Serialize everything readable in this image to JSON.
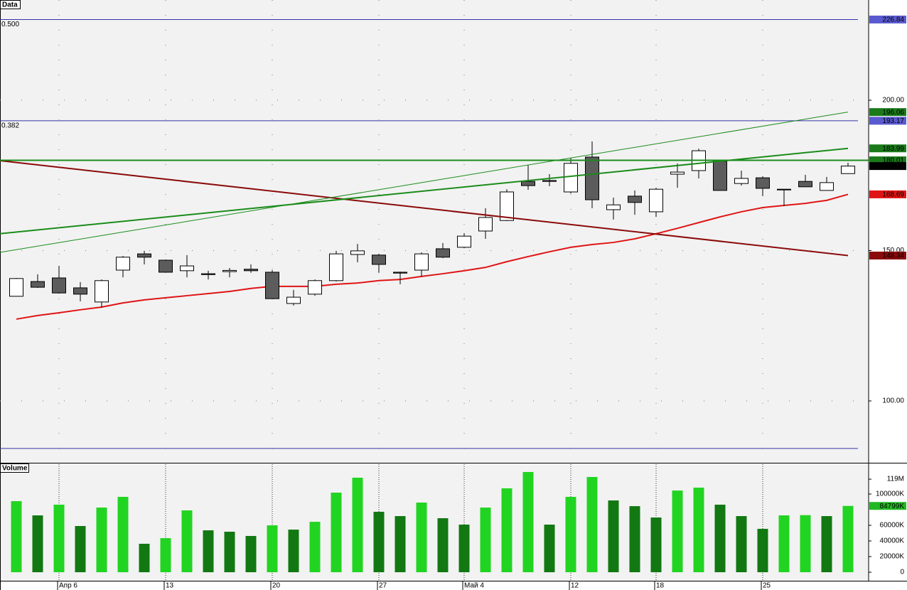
{
  "chart_data": [
    {
      "type": "candlestick",
      "title": "Data",
      "open": [
        134.8,
        139.7,
        140.9,
        137.6,
        132.9,
        143.5,
        148.9,
        146.8,
        143.3,
        142.3,
        143.0,
        143.8,
        142.8,
        132.4,
        135.5,
        140.0,
        148.7,
        148.5,
        142.8,
        143.5,
        150.6,
        151.1,
        156.5,
        160.0,
        173.0,
        173.3,
        169.5,
        181.1,
        163.6,
        168.1,
        162.9,
        175.4,
        176.6,
        179.7,
        172.3,
        174.2,
        170.4,
        173.0,
        170.0,
        175.6
      ],
      "high": [
        140.9,
        142.1,
        144.9,
        139.5,
        140.4,
        148.2,
        149.9,
        147.0,
        148.5,
        143.3,
        144.2,
        145.4,
        143.5,
        136.9,
        140.4,
        149.9,
        152.2,
        148.9,
        143.0,
        149.4,
        152.5,
        155.8,
        164.1,
        170.4,
        178.5,
        175.4,
        180.9,
        186.3,
        167.6,
        170.0,
        170.9,
        179.0,
        183.9,
        179.9,
        176.6,
        174.7,
        170.4,
        175.2,
        174.5,
        179.2
      ],
      "low": [
        134.8,
        137.6,
        135.7,
        133.1,
        131.0,
        141.1,
        145.4,
        142.6,
        141.1,
        140.4,
        141.1,
        142.6,
        133.8,
        131.7,
        135.0,
        139.7,
        146.1,
        142.6,
        138.8,
        141.4,
        147.5,
        150.8,
        153.9,
        159.8,
        170.2,
        171.4,
        169.0,
        164.1,
        160.3,
        161.9,
        161.2,
        170.9,
        174.0,
        170.0,
        171.6,
        168.1,
        164.8,
        171.2,
        170.0,
        175.6
      ],
      "close": [
        140.7,
        137.8,
        135.9,
        135.5,
        140.0,
        147.8,
        147.8,
        142.8,
        144.9,
        142.0,
        143.4,
        143.3,
        134.0,
        134.5,
        140.0,
        148.9,
        149.9,
        145.4,
        142.5,
        148.9,
        147.8,
        154.8,
        161.0,
        169.5,
        171.6,
        173.0,
        179.0,
        166.9,
        165.2,
        166.0,
        170.4,
        176.1,
        183.2,
        170.0,
        174.0,
        170.7,
        170.2,
        171.2,
        172.6,
        178.1
      ],
      "last_close_label": "178.10",
      "up_color": "#ffffff",
      "down_color": "#5c5c5c",
      "moving_average": {
        "color": "#e01414",
        "values": [
          127.2,
          128.4,
          129.3,
          130.3,
          131.2,
          132.6,
          133.6,
          134.3,
          135.0,
          135.7,
          136.4,
          137.4,
          138.1,
          138.1,
          138.1,
          138.8,
          139.2,
          140.0,
          140.4,
          141.4,
          142.3,
          143.3,
          144.4,
          146.3,
          148.0,
          149.6,
          151.1,
          152.0,
          152.7,
          153.9,
          155.6,
          157.4,
          159.3,
          161.2,
          162.9,
          164.3,
          165.0,
          165.7,
          166.7,
          168.69
        ]
      },
      "trend_lines": [
        {
          "color": "#8b0a0a",
          "start": 179.9,
          "end": 148.34
        },
        {
          "color": "#1a8c1a",
          "start": 149.4,
          "end": 196.06
        },
        {
          "color": "#1a8c1a",
          "start": 155.6,
          "end": 183.99
        }
      ],
      "horizontal_line": {
        "value": 180.01,
        "color": "#1a8c1a"
      },
      "fib_levels": [
        {
          "label": "0.500",
          "value": 226.84,
          "color": "#3434a8"
        },
        {
          "label": "0.382",
          "value": 193.17,
          "color": "#3434a8"
        },
        {
          "value": 84.2,
          "color": "#3434a8"
        }
      ],
      "ylim": [
        79.43,
        233.33
      ],
      "yticks": [
        {
          "value": 100,
          "label": "100.00"
        },
        {
          "value": 150,
          "label": "150.00"
        },
        {
          "value": 200,
          "label": "200.00"
        }
      ],
      "grid": true
    },
    {
      "type": "bar",
      "title": "Volume",
      "categories": [
        null,
        null,
        "Апр 6",
        null,
        null,
        null,
        null,
        "13",
        null,
        null,
        null,
        null,
        "20",
        null,
        null,
        null,
        null,
        "27",
        null,
        null,
        null,
        "Май 4",
        null,
        null,
        null,
        null,
        "12",
        null,
        null,
        null,
        "18",
        null,
        null,
        null,
        null,
        "25",
        null,
        null,
        null,
        null
      ],
      "values": [
        90900,
        72700,
        86400,
        59100,
        82700,
        96400,
        36400,
        43600,
        79100,
        53600,
        51800,
        46400,
        60000,
        54500,
        64500,
        101800,
        120900,
        77300,
        71800,
        89100,
        69100,
        60900,
        82700,
        107300,
        128200,
        60900,
        96400,
        121800,
        91800,
        84500,
        70000,
        104500,
        108200,
        86400,
        71800,
        55500,
        72700,
        73000,
        71800,
        84799
      ],
      "last_label": "84799K",
      "up_color": "#22d422",
      "down_color": "#127812",
      "ylim": [
        0,
        139091
      ],
      "yticks": [
        0,
        {
          "value": 20000,
          "label": "20000K"
        },
        {
          "value": 40000,
          "label": "40000K"
        },
        {
          "value": 60000,
          "label": "60000K"
        },
        {
          "value": 100000,
          "label": "100000K"
        },
        {
          "value": 119000,
          "label": "119M"
        }
      ]
    }
  ]
}
